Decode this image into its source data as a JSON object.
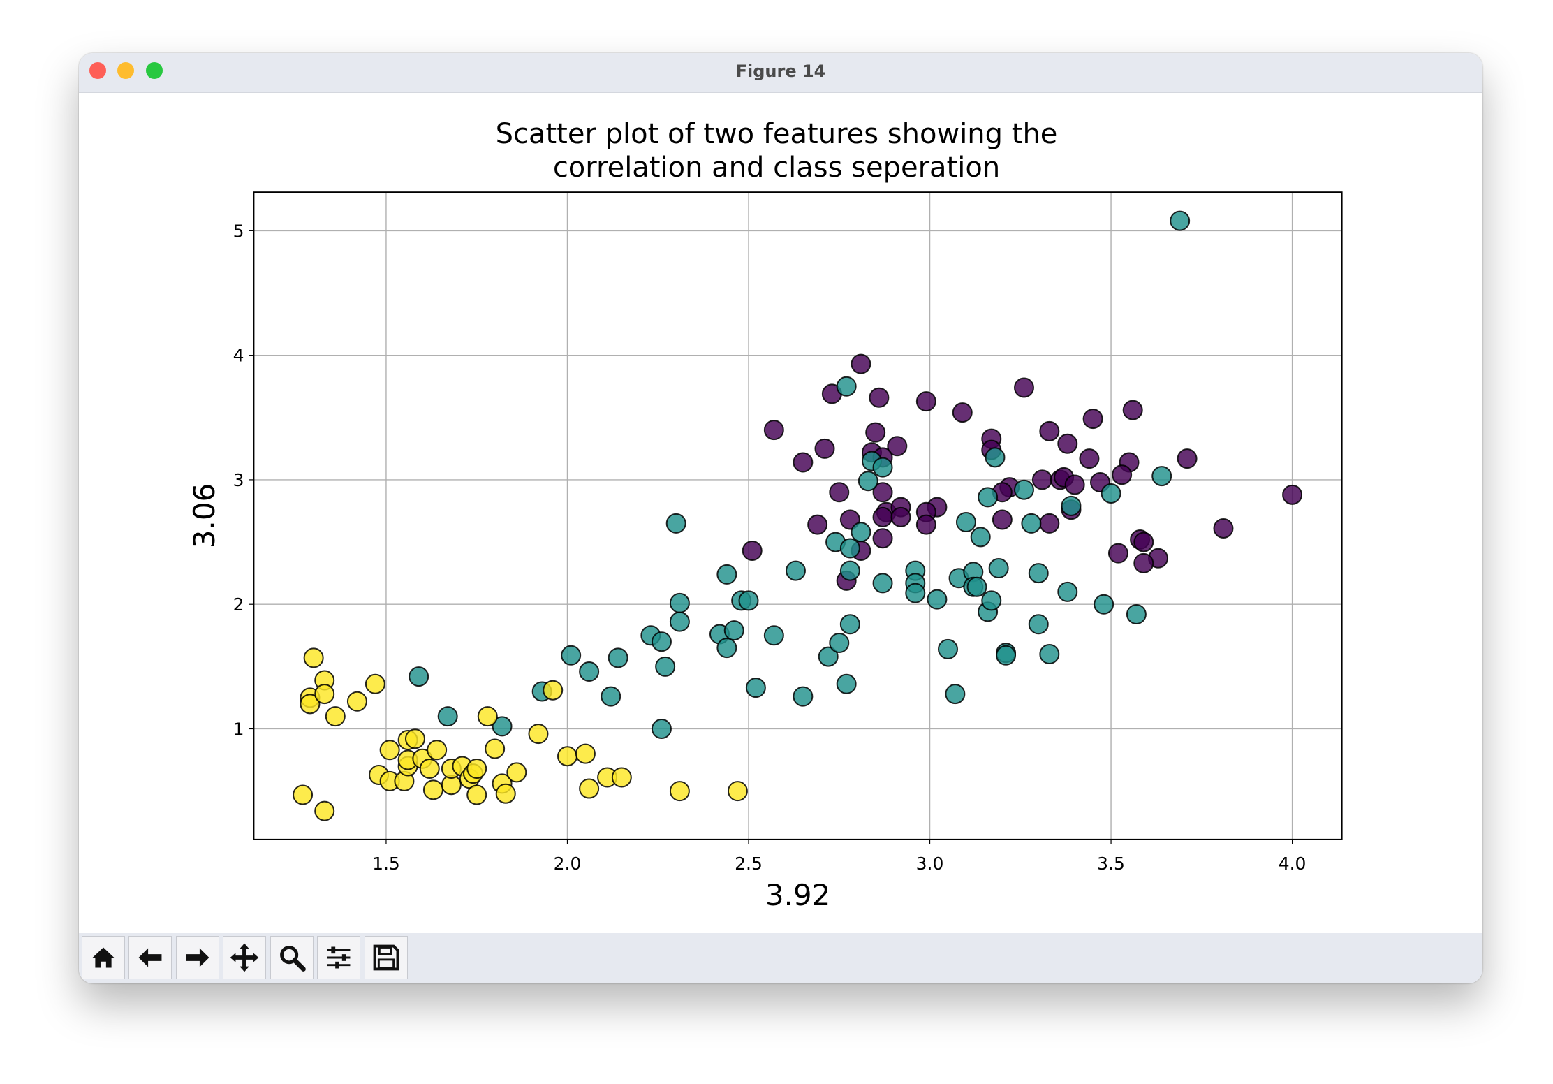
{
  "window": {
    "title": "Figure 14"
  },
  "chart_data": {
    "type": "scatter",
    "title": "Scatter plot of two features showing the\ncorrelation and class seperation",
    "xlabel": "3.92",
    "ylabel": "3.06",
    "xlim": [
      1.135,
      4.137
    ],
    "ylim": [
      0.112,
      5.31
    ],
    "xticks": [
      1.5,
      {
        "value": 2,
        "label": "2.0"
      },
      2.5,
      {
        "value": 3,
        "label": "3.0"
      },
      3.5,
      {
        "value": 4,
        "label": "4.0"
      }
    ],
    "yticks": [
      1,
      2,
      3,
      4,
      5
    ],
    "grid": true,
    "series": [
      {
        "color": "#440154",
        "x": [
          2.81,
          2.73,
          2.86,
          2.99,
          3.09,
          3.26,
          3.45,
          3.56,
          2.57,
          2.85,
          3.33,
          3.17,
          2.91,
          3.38,
          2.71,
          3.17,
          2.84,
          2.87,
          2.65,
          3.44,
          3.55,
          3.71,
          3.53,
          3.31,
          3.36,
          3.37,
          3.4,
          3.47,
          2.75,
          2.87,
          3.22,
          3.2,
          4.0,
          2.88,
          2.92,
          3.02,
          2.99,
          2.99,
          2.87,
          2.92,
          2.78,
          3.2,
          3.39,
          2.69,
          3.33,
          3.81,
          2.87,
          2.81,
          2.51,
          3.58,
          3.59,
          3.52,
          3.63,
          3.59,
          2.77
        ],
        "values": [
          3.93,
          3.69,
          3.66,
          3.63,
          3.54,
          3.74,
          3.49,
          3.56,
          3.4,
          3.38,
          3.39,
          3.33,
          3.27,
          3.29,
          3.25,
          3.24,
          3.22,
          3.18,
          3.14,
          3.17,
          3.14,
          3.17,
          3.04,
          3.0,
          3.0,
          3.02,
          2.96,
          2.98,
          2.9,
          2.9,
          2.94,
          2.9,
          2.88,
          2.74,
          2.78,
          2.78,
          2.74,
          2.64,
          2.7,
          2.7,
          2.68,
          2.68,
          2.76,
          2.64,
          2.65,
          2.61,
          2.53,
          2.43,
          2.43,
          2.52,
          2.5,
          2.41,
          2.37,
          2.33,
          2.19
        ]
      },
      {
        "color": "#21918c",
        "x": [
          3.69,
          1.59,
          1.67,
          1.82,
          1.93,
          2.01,
          2.06,
          2.12,
          2.14,
          2.23,
          2.26,
          2.27,
          2.26,
          2.3,
          2.31,
          2.31,
          2.42,
          2.44,
          2.44,
          2.46,
          2.48,
          2.5,
          2.52,
          2.57,
          2.63,
          2.65,
          2.72,
          2.74,
          2.75,
          2.77,
          2.77,
          2.78,
          2.78,
          2.78,
          2.81,
          2.83,
          2.84,
          2.87,
          2.87,
          2.96,
          2.96,
          2.96,
          3.02,
          3.05,
          3.07,
          3.08,
          3.1,
          3.12,
          3.12,
          3.13,
          3.14,
          3.16,
          3.17,
          3.16,
          3.18,
          3.19,
          3.21,
          3.21,
          3.26,
          3.28,
          3.3,
          3.3,
          3.33,
          3.38,
          3.39,
          3.48,
          3.5,
          3.57,
          3.64
        ],
        "values": [
          5.08,
          1.42,
          1.1,
          1.02,
          1.3,
          1.59,
          1.46,
          1.26,
          1.57,
          1.75,
          1.7,
          1.5,
          1.0,
          2.65,
          2.01,
          1.86,
          1.76,
          1.65,
          2.24,
          1.79,
          2.03,
          2.03,
          1.33,
          1.75,
          2.27,
          1.26,
          1.58,
          2.5,
          1.69,
          3.75,
          1.36,
          2.45,
          2.27,
          1.84,
          2.58,
          2.99,
          3.15,
          3.1,
          2.17,
          2.27,
          2.17,
          2.09,
          2.04,
          1.64,
          1.28,
          2.21,
          2.66,
          2.26,
          2.14,
          2.14,
          2.54,
          1.94,
          2.03,
          2.86,
          3.18,
          2.29,
          1.61,
          1.59,
          2.92,
          2.65,
          2.25,
          1.84,
          1.6,
          2.1,
          2.79,
          2.0,
          2.89,
          1.92,
          3.03
        ]
      },
      {
        "color": "#fde725",
        "x": [
          1.27,
          1.3,
          1.29,
          1.29,
          1.33,
          1.33,
          1.33,
          1.36,
          1.42,
          1.47,
          1.48,
          1.51,
          1.51,
          1.55,
          1.56,
          1.56,
          1.58,
          1.56,
          1.6,
          1.62,
          1.63,
          1.64,
          1.68,
          1.68,
          1.71,
          1.73,
          1.74,
          1.75,
          1.75,
          1.78,
          1.8,
          1.82,
          1.83,
          1.86,
          1.92,
          1.96,
          2.0,
          2.05,
          2.06,
          2.11,
          2.15,
          2.31,
          2.47
        ],
        "values": [
          0.47,
          1.57,
          1.25,
          1.2,
          1.39,
          1.28,
          0.34,
          1.1,
          1.22,
          1.36,
          0.63,
          0.83,
          0.58,
          0.58,
          0.91,
          0.7,
          0.92,
          0.75,
          0.76,
          0.68,
          0.51,
          0.83,
          0.55,
          0.68,
          0.7,
          0.6,
          0.64,
          0.68,
          0.47,
          1.1,
          0.84,
          0.56,
          0.48,
          0.65,
          0.96,
          1.31,
          0.78,
          0.8,
          0.52,
          0.61,
          0.61,
          0.5,
          0.5
        ]
      }
    ]
  }
}
